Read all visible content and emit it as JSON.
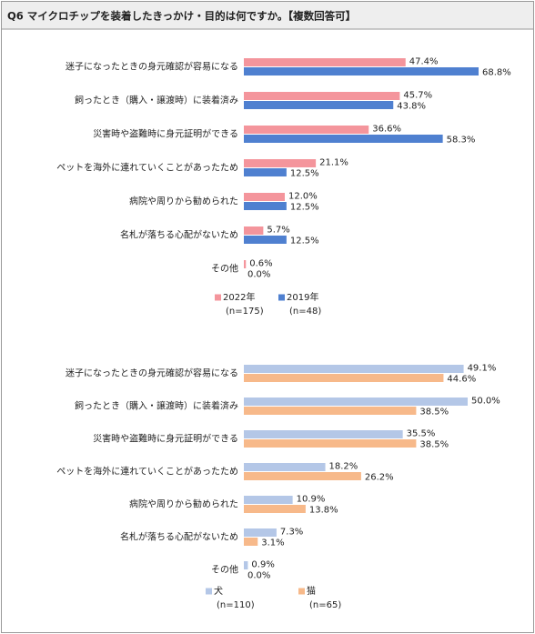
{
  "header": {
    "title": "Q6 マイクロチップを装着したきっかけ・目的は何ですか。【複数回答可】"
  },
  "chart_data": [
    {
      "type": "bar",
      "orientation": "horizontal",
      "categories": [
        "迷子になったときの身元確認が容易になる",
        "飼ったとき（購入・譲渡時）に装着済み",
        "災害時や盗難時に身元証明ができる",
        "ペットを海外に連れていくことがあったため",
        "病院や周りから勧められた",
        "名札が落ちる心配がないため",
        "その他"
      ],
      "series": [
        {
          "name": "2022年",
          "sample": "(n=175)",
          "color": "#f4959c",
          "values": [
            47.4,
            45.7,
            36.6,
            21.1,
            12.0,
            5.7,
            0.6
          ],
          "value_labels": [
            "47.4%",
            "45.7%",
            "36.6%",
            "21.1%",
            "12.0%",
            "5.7%",
            "0.6%"
          ]
        },
        {
          "name": "2019年",
          "sample": "(n=48)",
          "color": "#4f80d0",
          "values": [
            68.8,
            43.8,
            58.3,
            12.5,
            12.5,
            12.5,
            0.0
          ],
          "value_labels": [
            "68.8%",
            "43.8%",
            "58.3%",
            "12.5%",
            "12.5%",
            "12.5%",
            "0.0%"
          ]
        }
      ]
    },
    {
      "type": "bar",
      "orientation": "horizontal",
      "categories": [
        "迷子になったときの身元確認が容易になる",
        "飼ったとき（購入・譲渡時）に装着済み",
        "災害時や盗難時に身元証明ができる",
        "ペットを海外に連れていくことがあったため",
        "病院や周りから勧められた",
        "名札が落ちる心配がないため",
        "その他"
      ],
      "series": [
        {
          "name": "犬",
          "sample": "(n=110)",
          "color": "#b4c7e7",
          "values": [
            49.1,
            50.0,
            35.5,
            18.2,
            10.9,
            7.3,
            0.9
          ],
          "value_labels": [
            "49.1%",
            "50.0%",
            "35.5%",
            "18.2%",
            "10.9%",
            "7.3%",
            "0.9%"
          ]
        },
        {
          "name": "猫",
          "sample": "(n=65)",
          "color": "#f7b98a",
          "values": [
            44.6,
            38.5,
            38.5,
            26.2,
            13.8,
            3.1,
            0.0
          ],
          "value_labels": [
            "44.6%",
            "38.5%",
            "38.5%",
            "26.2%",
            "13.8%",
            "3.1%",
            "0.0%"
          ]
        }
      ]
    }
  ]
}
